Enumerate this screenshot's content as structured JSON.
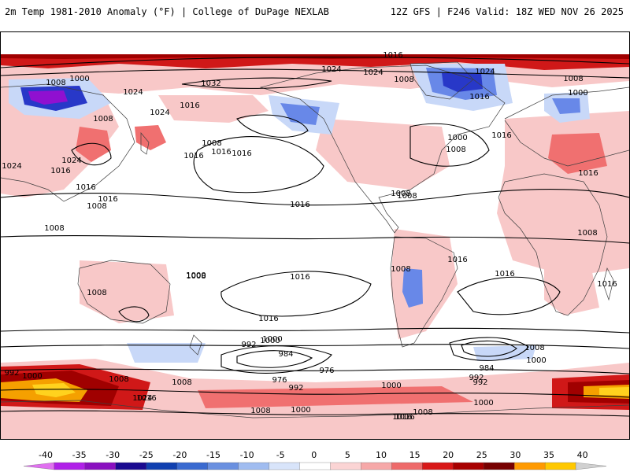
{
  "header": {
    "left_title": "2m Temp 1981-2010 Anomaly (°F) | College of DuPage NEXLAB",
    "right_title": "12Z GFS | F246 Valid: 18Z WED NOV 26 2025"
  },
  "map": {
    "projection": "cylindrical global",
    "field": "2m temperature anomaly",
    "contour_field": "mean sea level pressure",
    "contour_labels": [
      "1016",
      "1000",
      "1008",
      "1032",
      "1024",
      "1024",
      "1008",
      "1024",
      "1008",
      "1000",
      "1024",
      "1016",
      "1024",
      "1016",
      "1008",
      "1016",
      "1016",
      "1008",
      "1016",
      "1000",
      "1008",
      "1016",
      "1024",
      "1024",
      "1016",
      "1016",
      "1016",
      "1016",
      "1008",
      "1008",
      "1016",
      "1008",
      "1008",
      "1008",
      "1016",
      "1008",
      "1008",
      "1000",
      "1016",
      "1016",
      "1016",
      "1008",
      "1016",
      "1000",
      "992",
      "1000",
      "984",
      "976",
      "976",
      "992",
      "1000",
      "1008",
      "1016",
      "1024",
      "1000",
      "992",
      "984",
      "992",
      "1000",
      "1008",
      "1016",
      "1008",
      "1000",
      "1016",
      "1008",
      "1008",
      "1000",
      "992"
    ],
    "colors": {
      "warm_light": "#f8c8c8",
      "warm_mid": "#f07070",
      "warm_strong": "#d01818",
      "warm_deep": "#a00000",
      "warm_extreme": "#f5a000",
      "warm_yellow": "#ffd21e",
      "cold_light": "#c8d8f8",
      "cold_mid": "#6888e8",
      "cold_deep": "#2838c8",
      "cold_purple": "#9010d0",
      "contour": "#000000",
      "coastline": "#404040"
    }
  },
  "colorbar": {
    "ticks": [
      "-40",
      "-35",
      "-30",
      "-25",
      "-20",
      "-15",
      "-10",
      "-5",
      "0",
      "5",
      "10",
      "15",
      "20",
      "25",
      "30",
      "35",
      "40"
    ],
    "colors": [
      "#e070f0",
      "#b020e8",
      "#8a10c0",
      "#1a0a90",
      "#1040b0",
      "#3a6ad0",
      "#6a90e0",
      "#a0bcf0",
      "#d8e4fa",
      "#ffffff",
      "#fbd4d4",
      "#f6a8a8",
      "#ee6a6a",
      "#d81818",
      "#a80000",
      "#780000",
      "#ff9a00",
      "#ffc800",
      "#d0d0d0"
    ]
  }
}
